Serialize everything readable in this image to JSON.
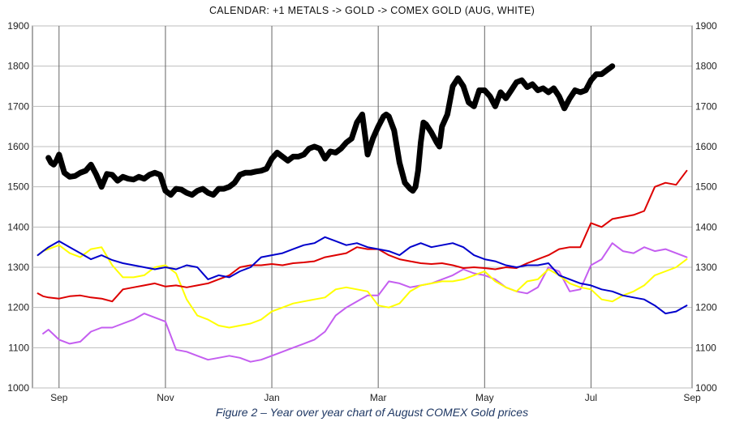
{
  "caption": "Figure 2 – Year over year chart of August COMEX Gold prices",
  "chart_data": {
    "type": "line",
    "title": "CALENDAR: +1 METALS -> GOLD -> COMEX GOLD (AUG, WHITE)",
    "xlabel": "",
    "ylabel": "",
    "ylim": [
      1000,
      1900
    ],
    "yticks": [
      1000,
      1100,
      1200,
      1300,
      1400,
      1500,
      1600,
      1700,
      1800,
      1900
    ],
    "xlim": [
      -0.3,
      12.1
    ],
    "xticks": [
      {
        "label": "Sep",
        "pos": 0.2
      },
      {
        "label": "Nov",
        "pos": 2.2
      },
      {
        "label": "Jan",
        "pos": 4.2
      },
      {
        "label": "Mar",
        "pos": 6.2
      },
      {
        "label": "May",
        "pos": 8.2
      },
      {
        "label": "Jul",
        "pos": 10.2
      },
      {
        "label": "Sep",
        "pos": 12.2
      }
    ],
    "grid": true,
    "colors": {
      "white": "#000000",
      "red": "#dd0000",
      "blue": "#0000cc",
      "yellow": "#ffff00",
      "violet": "#c45ef0"
    },
    "series": [
      {
        "key": "white",
        "width": 7,
        "x": [
          0,
          0.05,
          0.1,
          0.15,
          0.2,
          0.3,
          0.4,
          0.5,
          0.6,
          0.7,
          0.8,
          0.9,
          1.0,
          1.1,
          1.2,
          1.3,
          1.4,
          1.5,
          1.6,
          1.7,
          1.8,
          1.9,
          2.0,
          2.1,
          2.2,
          2.3,
          2.4,
          2.5,
          2.6,
          2.7,
          2.8,
          2.9,
          3.0,
          3.1,
          3.2,
          3.3,
          3.4,
          3.5,
          3.6,
          3.7,
          3.8,
          3.9,
          4.0,
          4.1,
          4.2,
          4.3,
          4.4,
          4.5,
          4.6,
          4.7,
          4.8,
          4.9,
          5.0,
          5.1,
          5.2,
          5.3,
          5.4,
          5.5,
          5.6,
          5.7,
          5.8,
          5.9,
          6.0,
          6.1,
          6.2,
          6.3,
          6.35,
          6.4,
          6.5,
          6.6,
          6.7,
          6.8,
          6.85,
          6.9,
          6.95,
          7.0,
          7.05,
          7.1,
          7.2,
          7.3,
          7.35,
          7.4,
          7.5,
          7.6,
          7.7,
          7.8,
          7.9,
          8.0,
          8.1,
          8.2,
          8.3,
          8.4,
          8.5,
          8.6,
          8.7,
          8.8,
          8.9,
          9.0,
          9.1,
          9.2,
          9.3,
          9.4,
          9.5,
          9.6,
          9.7,
          9.8,
          9.9,
          10.0,
          10.1,
          10.2,
          10.3,
          10.4,
          10.5,
          10.6
        ],
        "y": [
          1572,
          1560,
          1555,
          1565,
          1580,
          1535,
          1525,
          1527,
          1535,
          1540,
          1555,
          1530,
          1500,
          1532,
          1530,
          1515,
          1525,
          1520,
          1518,
          1525,
          1520,
          1530,
          1535,
          1530,
          1490,
          1480,
          1495,
          1493,
          1485,
          1480,
          1490,
          1495,
          1485,
          1480,
          1495,
          1495,
          1500,
          1510,
          1530,
          1535,
          1535,
          1538,
          1540,
          1545,
          1570,
          1585,
          1575,
          1565,
          1575,
          1575,
          1580,
          1595,
          1600,
          1595,
          1570,
          1588,
          1585,
          1595,
          1610,
          1620,
          1660,
          1680,
          1580,
          1620,
          1650,
          1675,
          1680,
          1675,
          1640,
          1560,
          1510,
          1495,
          1490,
          1500,
          1540,
          1610,
          1660,
          1655,
          1635,
          1610,
          1600,
          1650,
          1680,
          1750,
          1770,
          1750,
          1710,
          1700,
          1740,
          1740,
          1725,
          1700,
          1735,
          1720,
          1740,
          1760,
          1765,
          1748,
          1755,
          1740,
          1745,
          1735,
          1745,
          1725,
          1695,
          1720,
          1740,
          1735,
          1740,
          1765,
          1780,
          1780,
          1790,
          1800
        ]
      },
      {
        "key": "red",
        "width": 2,
        "x": [
          -0.2,
          -0.1,
          0,
          0.2,
          0.4,
          0.6,
          0.8,
          1.0,
          1.2,
          1.4,
          1.6,
          1.8,
          2.0,
          2.2,
          2.4,
          2.6,
          2.8,
          3.0,
          3.2,
          3.4,
          3.6,
          3.8,
          4.0,
          4.2,
          4.4,
          4.6,
          4.8,
          5.0,
          5.2,
          5.4,
          5.6,
          5.8,
          6.0,
          6.2,
          6.4,
          6.6,
          6.8,
          7.0,
          7.2,
          7.4,
          7.6,
          7.8,
          8.0,
          8.2,
          8.4,
          8.6,
          8.8,
          9.0,
          9.2,
          9.4,
          9.6,
          9.8,
          10.0,
          10.2,
          10.4,
          10.6,
          10.8,
          11.0,
          11.2,
          11.4,
          11.6,
          11.8,
          12.0
        ],
        "y": [
          1235,
          1228,
          1225,
          1222,
          1228,
          1230,
          1225,
          1222,
          1215,
          1245,
          1250,
          1255,
          1260,
          1252,
          1255,
          1250,
          1255,
          1260,
          1270,
          1280,
          1300,
          1305,
          1305,
          1308,
          1305,
          1310,
          1312,
          1315,
          1325,
          1330,
          1335,
          1350,
          1345,
          1345,
          1330,
          1320,
          1315,
          1310,
          1308,
          1310,
          1305,
          1298,
          1300,
          1298,
          1295,
          1300,
          1298,
          1310,
          1320,
          1330,
          1345,
          1350,
          1350,
          1410,
          1400,
          1420,
          1425,
          1430,
          1440,
          1500,
          1510,
          1505,
          1540
        ]
      },
      {
        "key": "blue",
        "width": 2,
        "x": [
          -0.2,
          -0.1,
          0,
          0.2,
          0.4,
          0.6,
          0.8,
          1.0,
          1.2,
          1.4,
          1.6,
          1.8,
          2.0,
          2.2,
          2.4,
          2.6,
          2.8,
          3.0,
          3.2,
          3.4,
          3.6,
          3.8,
          4.0,
          4.2,
          4.4,
          4.6,
          4.8,
          5.0,
          5.2,
          5.4,
          5.6,
          5.8,
          6.0,
          6.2,
          6.4,
          6.6,
          6.8,
          7.0,
          7.2,
          7.4,
          7.6,
          7.8,
          8.0,
          8.2,
          8.4,
          8.6,
          8.8,
          9.0,
          9.2,
          9.4,
          9.6,
          9.8,
          10.0,
          10.2,
          10.4,
          10.6,
          10.8,
          11.0,
          11.2,
          11.4,
          11.6,
          11.8,
          12.0
        ],
        "y": [
          1330,
          1340,
          1350,
          1365,
          1350,
          1335,
          1320,
          1330,
          1318,
          1310,
          1305,
          1300,
          1295,
          1300,
          1295,
          1305,
          1300,
          1270,
          1280,
          1275,
          1290,
          1300,
          1325,
          1330,
          1335,
          1345,
          1355,
          1360,
          1375,
          1365,
          1355,
          1360,
          1350,
          1345,
          1340,
          1330,
          1350,
          1360,
          1350,
          1355,
          1360,
          1350,
          1330,
          1320,
          1315,
          1305,
          1300,
          1305,
          1305,
          1310,
          1280,
          1270,
          1260,
          1255,
          1245,
          1240,
          1230,
          1225,
          1220,
          1205,
          1185,
          1190,
          1205
        ]
      },
      {
        "key": "yellow",
        "width": 2,
        "x": [
          -0.2,
          -0.1,
          0,
          0.2,
          0.4,
          0.6,
          0.8,
          1.0,
          1.2,
          1.4,
          1.6,
          1.8,
          2.0,
          2.2,
          2.4,
          2.6,
          2.8,
          3.0,
          3.2,
          3.4,
          3.6,
          3.8,
          4.0,
          4.2,
          4.4,
          4.6,
          4.8,
          5.0,
          5.2,
          5.4,
          5.6,
          5.8,
          6.0,
          6.2,
          6.4,
          6.6,
          6.8,
          7.0,
          7.2,
          7.4,
          7.6,
          7.8,
          8.0,
          8.2,
          8.4,
          8.6,
          8.8,
          9.0,
          9.2,
          9.4,
          9.6,
          9.8,
          10.0,
          10.2,
          10.4,
          10.6,
          10.8,
          11.0,
          11.2,
          11.4,
          11.6,
          11.8,
          12.0
        ],
        "y": [
          1330,
          1340,
          1345,
          1355,
          1335,
          1325,
          1345,
          1350,
          1305,
          1275,
          1275,
          1280,
          1300,
          1305,
          1285,
          1220,
          1180,
          1170,
          1155,
          1150,
          1155,
          1160,
          1170,
          1190,
          1200,
          1210,
          1215,
          1220,
          1225,
          1245,
          1250,
          1245,
          1240,
          1205,
          1200,
          1210,
          1240,
          1255,
          1260,
          1265,
          1265,
          1270,
          1280,
          1290,
          1265,
          1250,
          1240,
          1265,
          1270,
          1295,
          1280,
          1260,
          1250,
          1245,
          1220,
          1215,
          1230,
          1240,
          1255,
          1280,
          1290,
          1300,
          1320
        ]
      },
      {
        "key": "violet",
        "width": 2,
        "x": [
          -0.1,
          0,
          0.2,
          0.4,
          0.6,
          0.8,
          1.0,
          1.2,
          1.4,
          1.6,
          1.8,
          2.0,
          2.2,
          2.4,
          2.6,
          2.8,
          3.0,
          3.2,
          3.4,
          3.6,
          3.8,
          4.0,
          4.2,
          4.4,
          4.6,
          4.8,
          5.0,
          5.2,
          5.4,
          5.6,
          5.8,
          6.0,
          6.2,
          6.4,
          6.6,
          6.8,
          7.0,
          7.2,
          7.4,
          7.6,
          7.8,
          8.0,
          8.2,
          8.4,
          8.6,
          8.8,
          9.0,
          9.2,
          9.4,
          9.6,
          9.8,
          10.0,
          10.2,
          10.4,
          10.6,
          10.8,
          11.0,
          11.2,
          11.4,
          11.6,
          11.8,
          12.0
        ],
        "y": [
          1135,
          1145,
          1120,
          1110,
          1115,
          1140,
          1150,
          1150,
          1160,
          1170,
          1185,
          1175,
          1165,
          1095,
          1090,
          1080,
          1070,
          1075,
          1080,
          1075,
          1065,
          1070,
          1080,
          1090,
          1100,
          1110,
          1120,
          1140,
          1180,
          1200,
          1215,
          1230,
          1230,
          1265,
          1260,
          1250,
          1255,
          1260,
          1270,
          1280,
          1295,
          1285,
          1280,
          1270,
          1250,
          1240,
          1235,
          1250,
          1300,
          1290,
          1240,
          1245,
          1305,
          1320,
          1360,
          1340,
          1335,
          1350,
          1340,
          1345,
          1335,
          1325
        ]
      }
    ]
  }
}
